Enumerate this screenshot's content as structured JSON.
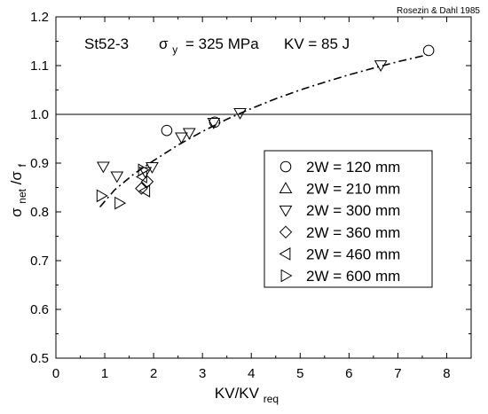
{
  "chart_data": {
    "type": "scatter",
    "credit": "Rosezin & Dahl 1985",
    "annotation": {
      "material": "St52-3",
      "sigma": "σ",
      "sigma_sub": "y",
      "yield": "= 325 MPa",
      "kv": "KV = 85 J"
    },
    "xlabel": {
      "main": "KV/KV",
      "sub": "req"
    },
    "ylabel": {
      "s1": "σ",
      "s1_sub": "net",
      "slash": "/σ",
      "s2_sub": "f"
    },
    "xlim": [
      0,
      8.5
    ],
    "ylim": [
      0.5,
      1.2
    ],
    "xticks": [
      "0",
      "1",
      "2",
      "3",
      "4",
      "5",
      "6",
      "7",
      "8"
    ],
    "yticks": [
      "0.5",
      "0.6",
      "0.7",
      "0.8",
      "0.9",
      "1.0",
      "1.1",
      "1.2"
    ],
    "reference_line_y": 1.0,
    "trend_line": {
      "style": "dash-dot",
      "points": [
        [
          0.9,
          0.81
        ],
        [
          1.2,
          0.845
        ],
        [
          1.6,
          0.878
        ],
        [
          2.0,
          0.905
        ],
        [
          2.5,
          0.937
        ],
        [
          3.0,
          0.965
        ],
        [
          3.5,
          0.99
        ],
        [
          4.0,
          1.012
        ],
        [
          4.5,
          1.032
        ],
        [
          5.0,
          1.05
        ],
        [
          5.5,
          1.066
        ],
        [
          6.0,
          1.081
        ],
        [
          6.5,
          1.095
        ],
        [
          7.0,
          1.108
        ],
        [
          7.6,
          1.122
        ]
      ]
    },
    "legend_position": "center-right",
    "series": [
      {
        "name": "2W = 120 mm",
        "marker": "circle",
        "points": [
          [
            2.27,
            0.967
          ],
          [
            3.25,
            0.984
          ],
          [
            7.63,
            1.131
          ]
        ]
      },
      {
        "name": "2W = 210 mm",
        "marker": "triangle-up",
        "points": []
      },
      {
        "name": "2W = 300 mm",
        "marker": "triangle-down",
        "points": [
          [
            0.97,
            0.893
          ],
          [
            1.25,
            0.873
          ],
          [
            1.83,
            0.882
          ],
          [
            1.97,
            0.892
          ],
          [
            2.57,
            0.953
          ],
          [
            2.73,
            0.962
          ],
          [
            3.23,
            0.983
          ],
          [
            3.77,
            1.003
          ],
          [
            6.65,
            1.101
          ]
        ]
      },
      {
        "name": "2W = 360 mm",
        "marker": "diamond",
        "points": [
          [
            1.75,
            0.848
          ],
          [
            1.87,
            0.862
          ]
        ]
      },
      {
        "name": "2W = 460 mm",
        "marker": "triangle-left",
        "points": [
          [
            1.77,
            0.872
          ],
          [
            1.83,
            0.843
          ]
        ]
      },
      {
        "name": "2W = 600 mm",
        "marker": "triangle-right",
        "points": [
          [
            0.93,
            0.833
          ],
          [
            1.3,
            0.818
          ],
          [
            1.78,
            0.886
          ]
        ]
      }
    ]
  }
}
